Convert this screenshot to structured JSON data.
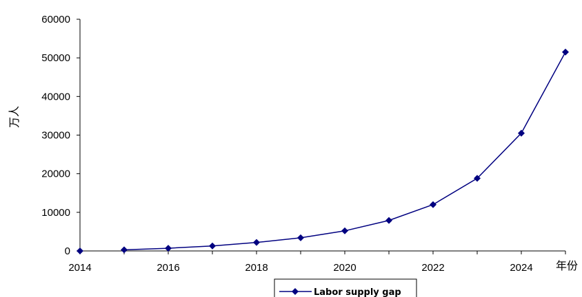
{
  "chart_data": {
    "type": "line",
    "x": [
      2014,
      2015,
      2016,
      2017,
      2018,
      2019,
      2020,
      2021,
      2022,
      2023,
      2024,
      2025
    ],
    "series": [
      {
        "name": "Labor supply gap",
        "values": [
          0,
          300,
          700,
          1300,
          2200,
          3400,
          5200,
          7900,
          12000,
          18800,
          30500,
          51500
        ]
      }
    ],
    "xlabel": "年份",
    "ylabel": "万人",
    "xticks": [
      "2014",
      "2016",
      "2018",
      "2020",
      "2022",
      "2024"
    ],
    "yticks": [
      "0",
      "10000",
      "20000",
      "30000",
      "40000",
      "50000",
      "60000"
    ],
    "xlim": [
      2014,
      2025
    ],
    "ylim": [
      0,
      60000
    ],
    "grid": false,
    "legend_position": "bottom",
    "colors": {
      "line": "#000080",
      "axis": "#000000"
    }
  }
}
